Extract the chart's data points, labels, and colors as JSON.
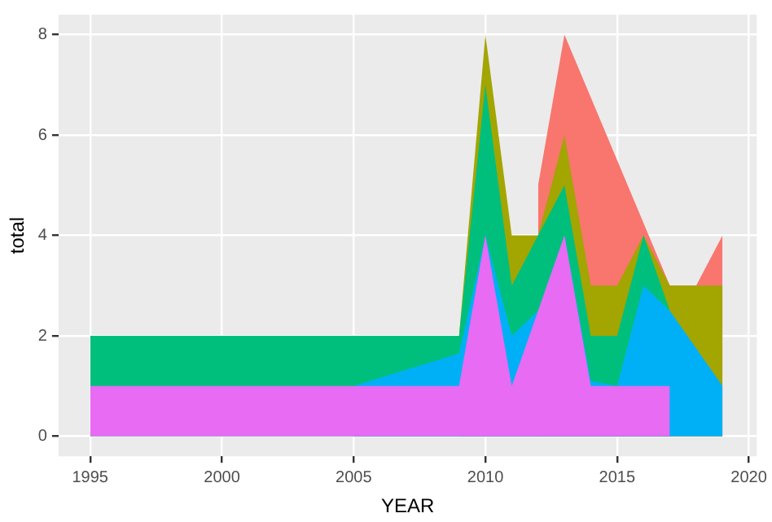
{
  "chart_data": {
    "type": "area",
    "xlabel": "YEAR",
    "ylabel": "total",
    "stacked": true,
    "grid": true,
    "x": [
      1995,
      2005,
      2009,
      2010,
      2011,
      2012,
      2013,
      2014,
      2015,
      2016,
      2017,
      2018,
      2019
    ],
    "series": [
      {
        "color": "#e76bf3",
        "values": [
          1,
          1,
          1,
          4,
          1,
          2.5,
          4,
          1,
          1,
          1,
          1,
          null,
          null
        ]
      },
      {
        "color": "#00b0f6",
        "values": [
          null,
          0,
          0.65,
          0,
          1,
          0,
          0,
          0.1,
          0,
          2,
          1.5,
          1.75,
          1
        ]
      },
      {
        "color": "#00bf7d",
        "values": [
          1,
          1,
          0.35,
          3,
          1,
          1.5,
          1,
          0.9,
          1,
          1,
          0,
          null,
          null
        ]
      },
      {
        "color": "#a3a500",
        "values": [
          null,
          null,
          0,
          1,
          1,
          0,
          1,
          1,
          1,
          0,
          0.5,
          1.25,
          2
        ]
      },
      {
        "color": "#f8766d",
        "values": [
          null,
          null,
          null,
          null,
          null,
          1,
          2,
          3.75,
          2.5,
          0.25,
          0,
          0,
          1
        ]
      }
    ],
    "xlim": [
      1993.8,
      2020.3
    ],
    "xticks": [
      1995,
      2000,
      2005,
      2010,
      2015,
      2020
    ],
    "ylim": [
      -0.4,
      8.4
    ],
    "yticks": [
      0,
      2,
      4,
      6,
      8
    ]
  }
}
